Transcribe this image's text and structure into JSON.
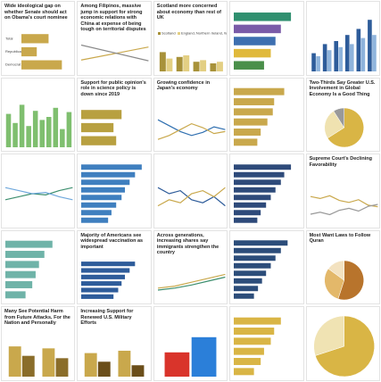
{
  "tiles": [
    {
      "title": "Wide ideological gap on whether Senate should act on Obama's court nominee",
      "chart": {
        "type": "hbar",
        "categories": [
          "Total",
          "Republican",
          "Democrat"
        ],
        "values": [
          53,
          30,
          79
        ],
        "color": "#c9a84c",
        "xlim": [
          0,
          100
        ]
      }
    },
    {
      "title": "Among Filipinos, massive jump in support for strong economic relations with China at expense of being tough on territorial disputes",
      "chart": {
        "type": "line",
        "ylim": [
          0,
          100
        ],
        "series": [
          {
            "color": "#c9a84c",
            "values": [
              29,
              62
            ]
          },
          {
            "color": "#8a8a8a",
            "values": [
              67,
              27
            ]
          }
        ]
      }
    },
    {
      "title": "Scotland more concerned about economy than rest of UK",
      "chart": {
        "type": "column",
        "ylim": [
          0,
          100
        ],
        "series": [
          {
            "name": "Scotland",
            "color": "#a8923a",
            "values": [
              60,
              45,
              30,
              25
            ]
          },
          {
            "name": "England, Northern Ireland, Wales",
            "color": "#e3cf83",
            "values": [
              40,
              50,
              35,
              30
            ]
          }
        ]
      }
    },
    {
      "chart": {
        "type": "hbar",
        "values": [
          85,
          70,
          62,
          55,
          45
        ],
        "colors": [
          "#2f8f6f",
          "#7a5ba8",
          "#3d6fb0",
          "#e0b93c",
          "#4a8f4a"
        ],
        "xlim": [
          0,
          100
        ]
      }
    },
    {
      "chart": {
        "type": "column",
        "ylim": [
          0,
          100
        ],
        "series": [
          {
            "color": "#2e5c9a",
            "values": [
              30,
              45,
              50,
              60,
              70,
              85
            ]
          },
          {
            "color": "#8fb4dc",
            "values": [
              25,
              35,
              40,
              45,
              55,
              60
            ]
          }
        ]
      }
    },
    {
      "chart": {
        "type": "column",
        "ylim": [
          0,
          100
        ],
        "series": [
          {
            "color": "#7fbf6f",
            "values": [
              55,
              40,
              70,
              35,
              60,
              45,
              50,
              65,
              30,
              58
            ]
          }
        ]
      }
    },
    {
      "title": "Support for public opinion's role in science policy is down since 2019",
      "chart": {
        "type": "hbar",
        "values": [
          60,
          48,
          52
        ],
        "color": "#b8a040",
        "xlim": [
          0,
          100
        ]
      }
    },
    {
      "title": "Growing confidence in Japan's economy",
      "chart": {
        "type": "line",
        "ylim": [
          0,
          100
        ],
        "series": [
          {
            "color": "#2f6fb0",
            "values": [
              70,
              55,
              40,
              30,
              38,
              52,
              45
            ]
          },
          {
            "color": "#c9a84c",
            "values": [
              20,
              30,
              45,
              60,
              50,
              35,
              40
            ]
          }
        ]
      }
    },
    {
      "chart": {
        "type": "hbar",
        "values": [
          75,
          60,
          58,
          50,
          40,
          35
        ],
        "color": "#c9a84c",
        "xlim": [
          0,
          100
        ]
      }
    },
    {
      "title": "Two-Thirds Say Greater U.S. Involvement in Global Economy Is a Good Thing",
      "chart": {
        "type": "pie",
        "values": [
          66,
          25,
          9
        ],
        "colors": [
          "#d9b545",
          "#efe2b0",
          "#999999"
        ]
      }
    },
    {
      "chart": {
        "type": "line",
        "ylim": [
          0,
          100
        ],
        "series": [
          {
            "color": "#3d8f6f",
            "values": [
              40,
              45,
              50,
              48,
              55,
              60
            ]
          },
          {
            "color": "#6fa8dc",
            "values": [
              60,
              55,
              50,
              52,
              45,
              40
            ]
          }
        ]
      }
    },
    {
      "chart": {
        "type": "hbar",
        "values": [
          90,
          80,
          72,
          65,
          60,
          52,
          45,
          40
        ],
        "color": "#3f7fbf",
        "xlim": [
          0,
          100
        ]
      }
    },
    {
      "chart": {
        "type": "line",
        "ylim": [
          0,
          100
        ],
        "series": [
          {
            "color": "#2e5c9a",
            "values": [
              60,
              50,
              55,
              40,
              35,
              45,
              30
            ]
          },
          {
            "color": "#c9a84c",
            "values": [
              30,
              40,
              35,
              50,
              55,
              45,
              60
            ]
          }
        ]
      }
    },
    {
      "chart": {
        "type": "hbar",
        "values": [
          85,
          75,
          70,
          62,
          55,
          48,
          40,
          35
        ],
        "color": "#2e4a7a",
        "xlim": [
          0,
          100
        ]
      }
    },
    {
      "title": "Supreme Court's Declining Favorability",
      "chart": {
        "type": "line",
        "ylim": [
          0,
          100
        ],
        "series": [
          {
            "color": "#c9a84c",
            "values": [
              70,
              65,
              72,
              60,
              55,
              62,
              48,
              44
            ]
          },
          {
            "color": "#999999",
            "values": [
              25,
              30,
              24,
              35,
              40,
              33,
              45,
              50
            ]
          }
        ]
      }
    },
    {
      "chart": {
        "type": "hbar",
        "values": [
          70,
          58,
          50,
          45,
          40,
          30
        ],
        "color": "#6fb3a8",
        "xlim": [
          0,
          100
        ]
      }
    },
    {
      "title": "Majority of Americans see widespread vaccination as important",
      "chart": {
        "type": "hbar",
        "values": [
          80,
          72,
          65,
          60,
          55,
          48
        ],
        "color": "#2e5c9a",
        "xlim": [
          0,
          100
        ]
      }
    },
    {
      "title": "Across generations, increasing shares say immigrants strengthen the country",
      "chart": {
        "type": "line",
        "ylim": [
          0,
          100
        ],
        "series": [
          {
            "color": "#c9a84c",
            "values": [
              30,
              35,
              45,
              55,
              65
            ]
          },
          {
            "color": "#3d8f6f",
            "values": [
              25,
              30,
              38,
              48,
              58
            ]
          }
        ]
      }
    },
    {
      "chart": {
        "type": "hbar",
        "values": [
          80,
          70,
          62,
          55,
          48,
          42,
          36,
          30
        ],
        "color": "#2c4d7a",
        "xlim": [
          0,
          100
        ]
      }
    },
    {
      "title": "Most Want Laws to Follow Quran",
      "chart": {
        "type": "pie",
        "values": [
          55,
          30,
          15
        ],
        "colors": [
          "#b8742c",
          "#e3b86a",
          "#f3e2c0"
        ]
      }
    },
    {
      "title": "Many See Potential Harm from Future Attacks, For the Nation and Personally",
      "chart": {
        "type": "column",
        "ylim": [
          0,
          100
        ],
        "series": [
          {
            "color": "#c9a84c",
            "values": [
              77,
              72
            ]
          },
          {
            "color": "#8a6d2a",
            "values": [
              53,
              47
            ]
          }
        ]
      }
    },
    {
      "title": "Increasing Support for Renewed U.S. Military Efforts",
      "chart": {
        "type": "column",
        "ylim": [
          0,
          100
        ],
        "series": [
          {
            "color": "#c9a84c",
            "values": [
              60,
              66
            ]
          },
          {
            "color": "#6b4e1a",
            "values": [
              38,
              29
            ]
          }
        ]
      }
    },
    {
      "chart": {
        "type": "column",
        "ylim": [
          0,
          100
        ],
        "series": [
          {
            "color": "#d9342b",
            "values": [
              40
            ]
          },
          {
            "color": "#2b7fd9",
            "values": [
              65
            ]
          }
        ]
      }
    },
    {
      "chart": {
        "type": "hbar",
        "values": [
          70,
          60,
          55,
          45,
          40,
          30
        ],
        "color": "#d9b545",
        "xlim": [
          0,
          100
        ]
      }
    },
    {
      "chart": {
        "type": "pie",
        "values": [
          70,
          30
        ],
        "colors": [
          "#d9b545",
          "#f0e3b3"
        ]
      }
    }
  ]
}
